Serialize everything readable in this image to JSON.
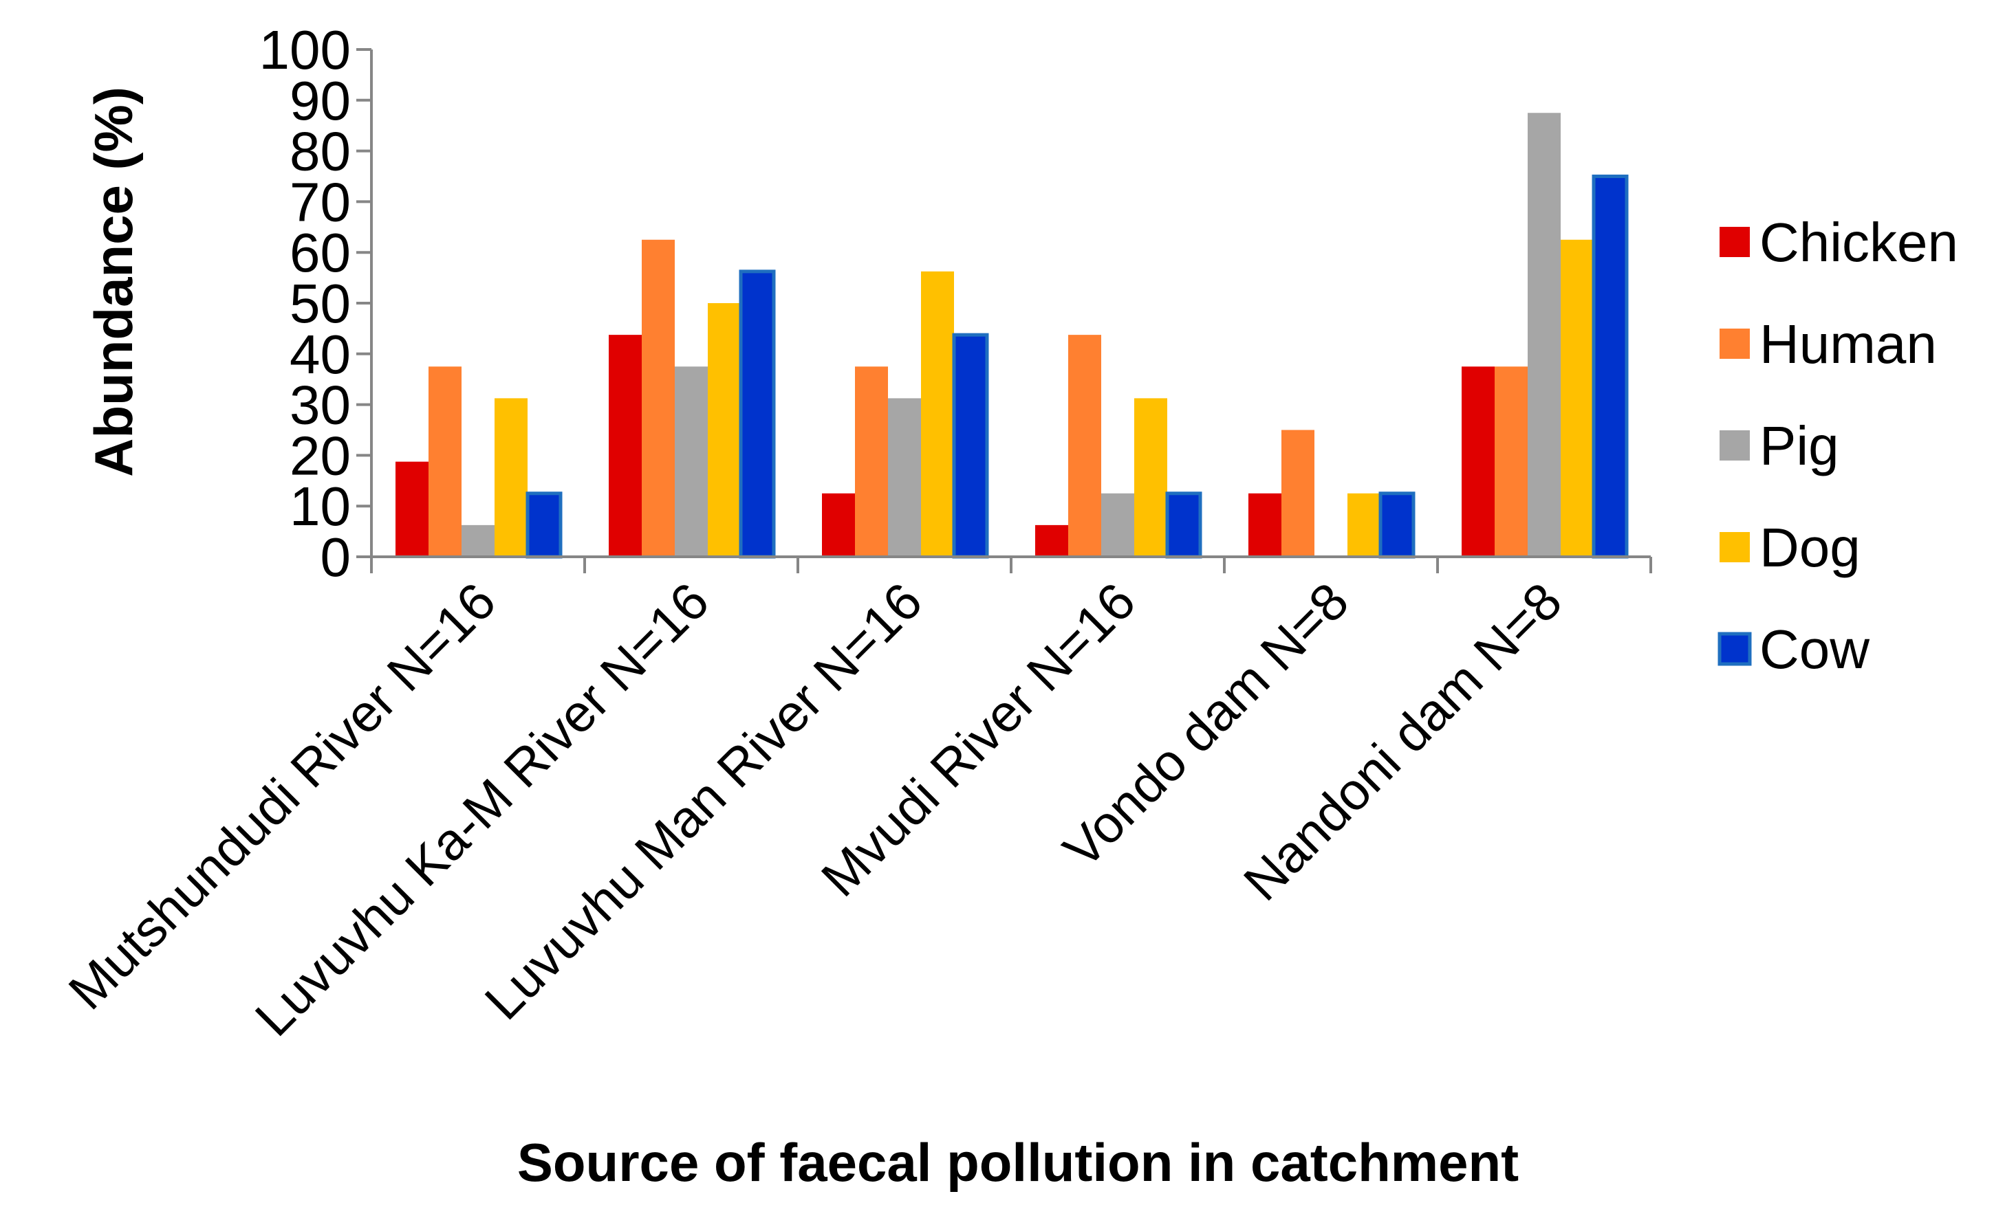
{
  "chart_data": {
    "type": "bar",
    "title": "",
    "xlabel": "Source of faecal pollution in catchment",
    "ylabel": "Abundance (%)",
    "ylim": [
      0,
      100
    ],
    "yticks": [
      "0",
      "10",
      "20",
      "30",
      "40",
      "50",
      "60",
      "70",
      "80",
      "90",
      "100"
    ],
    "grid": false,
    "legend_position": "right",
    "categories": [
      "Mutshundudi River N=16",
      "Luvuvhu Ka-M River N=16",
      "Luvuvhu Man River N=16",
      "Mvudi River N=16",
      "Vondo dam N=8",
      "Nandoni dam N=8"
    ],
    "series": [
      {
        "name": "Chicken",
        "color": "#E00000",
        "values": [
          18.75,
          43.75,
          12.5,
          6.25,
          12.5,
          37.5
        ]
      },
      {
        "name": "Human",
        "color": "#FF8030",
        "values": [
          37.5,
          62.5,
          37.5,
          43.75,
          25,
          37.5
        ]
      },
      {
        "name": "Pig",
        "color": "#A6A6A6",
        "values": [
          6.25,
          37.5,
          31.25,
          12.5,
          0,
          87.5
        ]
      },
      {
        "name": "Dog",
        "color": "#FFC000",
        "values": [
          31.25,
          50,
          56.25,
          31.25,
          12.5,
          62.5
        ]
      },
      {
        "name": "Cow",
        "color": "#0033CC",
        "stroke": "#1F6FC0",
        "values": [
          12.5,
          56.25,
          43.75,
          12.5,
          12.5,
          75
        ]
      }
    ]
  }
}
